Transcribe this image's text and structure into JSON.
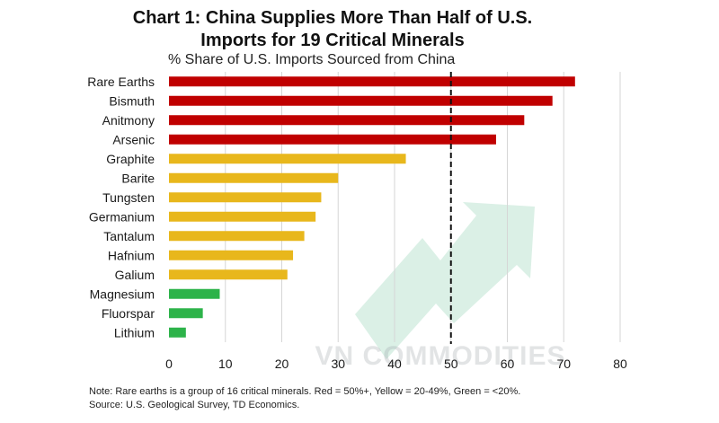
{
  "chart_data": {
    "type": "bar",
    "orientation": "horizontal",
    "title": "Chart 1: China Supplies More Than Half of U.S. Imports for 19 Critical Minerals",
    "title_lines": [
      "Chart 1: China Supplies More Than Half of U.S.",
      "Imports for 19 Critical Minerals"
    ],
    "subtitle": "% Share of U.S. Imports Sourced from China",
    "categories": [
      "Rare Earths",
      "Bismuth",
      "Anitmony",
      "Arsenic",
      "Graphite",
      "Barite",
      "Tungsten",
      "Germanium",
      "Tantalum",
      "Hafnium",
      "Galium",
      "Magnesium",
      "Fluorspar",
      "Lithium"
    ],
    "values": [
      72,
      68,
      63,
      58,
      42,
      30,
      27,
      26,
      24,
      22,
      21,
      9,
      6,
      3
    ],
    "tiers": [
      "red",
      "red",
      "red",
      "red",
      "yellow",
      "yellow",
      "yellow",
      "yellow",
      "yellow",
      "yellow",
      "yellow",
      "green",
      "green",
      "green"
    ],
    "xlim": [
      0,
      80
    ],
    "xticks": [
      "0",
      "10",
      "20",
      "30",
      "40",
      "50",
      "60",
      "70",
      "80"
    ],
    "reference_line": {
      "value": 50,
      "style": "dashed"
    },
    "grid": "vertical",
    "colors": {
      "red": "#c00000",
      "yellow": "#e8b71c",
      "green": "#2db34a",
      "grid": "#d6d6d6",
      "reference": "#111111"
    },
    "watermark": "VN COMMODITIES",
    "note_lines": [
      "Note: Rare earths is a group of 16 critical minerals. Red = 50%+, Yellow = 20-49%, Green = <20%.",
      "Source: U.S. Geological Survey, TD Economics."
    ]
  }
}
